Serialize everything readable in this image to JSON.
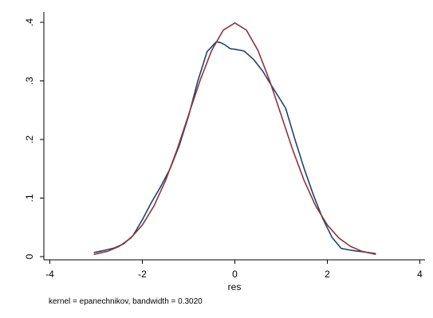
{
  "chart_data": {
    "type": "line",
    "xlabel": "res",
    "ylabel": "",
    "xlim": [
      -4,
      4
    ],
    "ylim": [
      0,
      0.4
    ],
    "xticks": [
      -4,
      -2,
      0,
      2,
      4
    ],
    "xtick_labels": [
      "-4",
      "-2",
      "0",
      "2",
      "4"
    ],
    "yticks": [
      0,
      0.1,
      0.2,
      0.3,
      0.4
    ],
    "ytick_labels": [
      "0",
      ".1",
      ".2",
      ".3",
      ".4"
    ],
    "grid": false,
    "note": "kernel = epanechnikov, bandwidth = 0.3020",
    "series": [
      {
        "color": "#1a476f",
        "x": [
          -3.05,
          -2.8,
          -2.6,
          -2.4,
          -2.2,
          -2.0,
          -1.8,
          -1.6,
          -1.4,
          -1.2,
          -1.0,
          -0.8,
          -0.6,
          -0.4,
          -0.3,
          -0.2,
          -0.1,
          0.0,
          0.2,
          0.4,
          0.6,
          0.8,
          1.0,
          1.1,
          1.3,
          1.5,
          1.7,
          1.9,
          2.1,
          2.3,
          2.5,
          2.7,
          2.9,
          3.05
        ],
        "y": [
          0.007,
          0.011,
          0.015,
          0.022,
          0.036,
          0.063,
          0.093,
          0.12,
          0.15,
          0.19,
          0.24,
          0.3,
          0.35,
          0.367,
          0.365,
          0.361,
          0.355,
          0.354,
          0.351,
          0.337,
          0.317,
          0.291,
          0.266,
          0.253,
          0.2,
          0.15,
          0.105,
          0.065,
          0.033,
          0.014,
          0.011,
          0.009,
          0.007,
          0.005
        ]
      },
      {
        "color": "#90353b",
        "x": [
          -3.05,
          -2.75,
          -2.5,
          -2.25,
          -2.0,
          -1.75,
          -1.5,
          -1.25,
          -1.0,
          -0.75,
          -0.5,
          -0.25,
          0.0,
          0.25,
          0.5,
          0.75,
          1.0,
          1.25,
          1.5,
          1.75,
          2.0,
          2.25,
          2.5,
          2.75,
          3.05
        ],
        "y": [
          0.0038,
          0.0091,
          0.0175,
          0.0317,
          0.054,
          0.0863,
          0.1295,
          0.1826,
          0.242,
          0.3011,
          0.3521,
          0.3867,
          0.3989,
          0.3867,
          0.3521,
          0.3011,
          0.242,
          0.1826,
          0.1295,
          0.0863,
          0.054,
          0.0317,
          0.0175,
          0.0091,
          0.0038
        ]
      }
    ]
  }
}
